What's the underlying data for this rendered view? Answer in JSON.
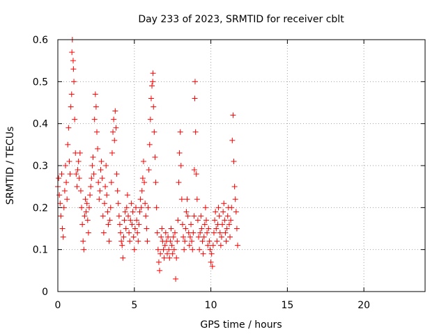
{
  "chart_data": {
    "type": "scatter",
    "title": "Day 233 of 2023, SRMTID for receiver cblt",
    "xlabel": "GPS time / hours",
    "ylabel": "SRMTID / TECUs",
    "xlim": [
      0,
      24
    ],
    "ylim": [
      0,
      0.6
    ],
    "xticks": [
      0,
      5,
      10,
      15,
      20
    ],
    "xtick_labels": [
      "0",
      "5",
      "10",
      "15",
      "20"
    ],
    "yticks": [
      0,
      0.1,
      0.2,
      0.3,
      0.4,
      0.5,
      0.6
    ],
    "ytick_labels": [
      "0",
      "0.1",
      "0.2",
      "0.3",
      "0.4",
      "0.5",
      "0.6"
    ],
    "grid": true,
    "marker": "+",
    "color": "#ff0000",
    "series": [
      {
        "name": "SRMTID",
        "points": [
          [
            0.0,
            0.25
          ],
          [
            0.05,
            0.27
          ],
          [
            0.1,
            0.23
          ],
          [
            0.15,
            0.21
          ],
          [
            0.2,
            0.18
          ],
          [
            0.25,
            0.28
          ],
          [
            0.3,
            0.15
          ],
          [
            0.35,
            0.13
          ],
          [
            0.4,
            0.2
          ],
          [
            0.45,
            0.24
          ],
          [
            0.5,
            0.3
          ],
          [
            0.55,
            0.26
          ],
          [
            0.6,
            0.22
          ],
          [
            0.65,
            0.35
          ],
          [
            0.7,
            0.39
          ],
          [
            0.75,
            0.31
          ],
          [
            0.8,
            0.28
          ],
          [
            0.85,
            0.44
          ],
          [
            0.9,
            0.47
          ],
          [
            0.92,
            0.57
          ],
          [
            0.95,
            0.6
          ],
          [
            1.0,
            0.55
          ],
          [
            1.02,
            0.53
          ],
          [
            1.05,
            0.5
          ],
          [
            1.1,
            0.41
          ],
          [
            1.15,
            0.33
          ],
          [
            1.2,
            0.28
          ],
          [
            1.25,
            0.25
          ],
          [
            1.3,
            0.29
          ],
          [
            1.35,
            0.31
          ],
          [
            1.4,
            0.27
          ],
          [
            1.45,
            0.33
          ],
          [
            1.5,
            0.24
          ],
          [
            1.55,
            0.2
          ],
          [
            1.6,
            0.16
          ],
          [
            1.65,
            0.12
          ],
          [
            1.7,
            0.1
          ],
          [
            1.75,
            0.18
          ],
          [
            1.8,
            0.22
          ],
          [
            1.85,
            0.19
          ],
          [
            1.9,
            0.21
          ],
          [
            1.95,
            0.17
          ],
          [
            2.0,
            0.14
          ],
          [
            2.05,
            0.2
          ],
          [
            2.1,
            0.23
          ],
          [
            2.15,
            0.25
          ],
          [
            2.2,
            0.27
          ],
          [
            2.25,
            0.3
          ],
          [
            2.3,
            0.32
          ],
          [
            2.35,
            0.28
          ],
          [
            2.4,
            0.41
          ],
          [
            2.45,
            0.47
          ],
          [
            2.5,
            0.44
          ],
          [
            2.55,
            0.38
          ],
          [
            2.6,
            0.34
          ],
          [
            2.65,
            0.26
          ],
          [
            2.7,
            0.22
          ],
          [
            2.75,
            0.24
          ],
          [
            2.8,
            0.29
          ],
          [
            2.85,
            0.31
          ],
          [
            2.9,
            0.27
          ],
          [
            2.95,
            0.18
          ],
          [
            3.0,
            0.14
          ],
          [
            3.05,
            0.21
          ],
          [
            3.1,
            0.25
          ],
          [
            3.15,
            0.3
          ],
          [
            3.2,
            0.23
          ],
          [
            3.25,
            0.19
          ],
          [
            3.3,
            0.16
          ],
          [
            3.35,
            0.12
          ],
          [
            3.4,
            0.17
          ],
          [
            3.45,
            0.2
          ],
          [
            3.5,
            0.26
          ],
          [
            3.55,
            0.33
          ],
          [
            3.6,
            0.38
          ],
          [
            3.65,
            0.41
          ],
          [
            3.7,
            0.36
          ],
          [
            3.75,
            0.43
          ],
          [
            3.8,
            0.39
          ],
          [
            3.85,
            0.28
          ],
          [
            3.9,
            0.24
          ],
          [
            3.95,
            0.21
          ],
          [
            4.0,
            0.18
          ],
          [
            4.05,
            0.16
          ],
          [
            4.1,
            0.14
          ],
          [
            4.15,
            0.12
          ],
          [
            4.2,
            0.11
          ],
          [
            4.25,
            0.08
          ],
          [
            4.3,
            0.13
          ],
          [
            4.35,
            0.17
          ],
          [
            4.4,
            0.19
          ],
          [
            4.45,
            0.15
          ],
          [
            4.5,
            0.2
          ],
          [
            4.55,
            0.23
          ],
          [
            4.6,
            0.18
          ],
          [
            4.65,
            0.14
          ],
          [
            4.7,
            0.12
          ],
          [
            4.75,
            0.17
          ],
          [
            4.8,
            0.21
          ],
          [
            4.85,
            0.16
          ],
          [
            4.9,
            0.19
          ],
          [
            4.95,
            0.13
          ],
          [
            5.0,
            0.1
          ],
          [
            5.05,
            0.15
          ],
          [
            5.1,
            0.2
          ],
          [
            5.15,
            0.17
          ],
          [
            5.2,
            0.14
          ],
          [
            5.25,
            0.12
          ],
          [
            5.3,
            0.16
          ],
          [
            5.35,
            0.19
          ],
          [
            5.4,
            0.22
          ],
          [
            5.45,
            0.2
          ],
          [
            5.5,
            0.24
          ],
          [
            5.55,
            0.27
          ],
          [
            5.6,
            0.31
          ],
          [
            5.65,
            0.26
          ],
          [
            5.7,
            0.21
          ],
          [
            5.75,
            0.18
          ],
          [
            5.8,
            0.15
          ],
          [
            5.85,
            0.12
          ],
          [
            5.9,
            0.2
          ],
          [
            5.95,
            0.29
          ],
          [
            6.0,
            0.35
          ],
          [
            6.05,
            0.41
          ],
          [
            6.1,
            0.46
          ],
          [
            6.15,
            0.49
          ],
          [
            6.2,
            0.5
          ],
          [
            6.22,
            0.52
          ],
          [
            6.25,
            0.44
          ],
          [
            6.3,
            0.38
          ],
          [
            6.35,
            0.32
          ],
          [
            6.4,
            0.26
          ],
          [
            6.45,
            0.2
          ],
          [
            6.5,
            0.14
          ],
          [
            6.55,
            0.1
          ],
          [
            6.6,
            0.07
          ],
          [
            6.65,
            0.05
          ],
          [
            6.7,
            0.09
          ],
          [
            6.75,
            0.13
          ],
          [
            6.8,
            0.15
          ],
          [
            6.85,
            0.12
          ],
          [
            6.9,
            0.1
          ],
          [
            6.95,
            0.08
          ],
          [
            7.0,
            0.11
          ],
          [
            7.05,
            0.14
          ],
          [
            7.1,
            0.12
          ],
          [
            7.15,
            0.09
          ],
          [
            7.2,
            0.13
          ],
          [
            7.25,
            0.1
          ],
          [
            7.3,
            0.08
          ],
          [
            7.35,
            0.12
          ],
          [
            7.4,
            0.15
          ],
          [
            7.45,
            0.11
          ],
          [
            7.5,
            0.09
          ],
          [
            7.55,
            0.13
          ],
          [
            7.6,
            0.1
          ],
          [
            7.65,
            0.14
          ],
          [
            7.7,
            0.03
          ],
          [
            7.75,
            0.08
          ],
          [
            7.8,
            0.12
          ],
          [
            7.85,
            0.17
          ],
          [
            7.9,
            0.26
          ],
          [
            7.95,
            0.33
          ],
          [
            8.0,
            0.38
          ],
          [
            8.05,
            0.3
          ],
          [
            8.1,
            0.22
          ],
          [
            8.15,
            0.16
          ],
          [
            8.2,
            0.13
          ],
          [
            8.25,
            0.1
          ],
          [
            8.3,
            0.12
          ],
          [
            8.35,
            0.15
          ],
          [
            8.4,
            0.19
          ],
          [
            8.45,
            0.22
          ],
          [
            8.5,
            0.18
          ],
          [
            8.55,
            0.14
          ],
          [
            8.6,
            0.11
          ],
          [
            8.65,
            0.13
          ],
          [
            8.7,
            0.16
          ],
          [
            8.75,
            0.12
          ],
          [
            8.8,
            0.1
          ],
          [
            8.85,
            0.14
          ],
          [
            8.9,
            0.18
          ],
          [
            8.92,
            0.29
          ],
          [
            8.95,
            0.46
          ],
          [
            8.97,
            0.5
          ],
          [
            9.0,
            0.38
          ],
          [
            9.05,
            0.28
          ],
          [
            9.1,
            0.22
          ],
          [
            9.15,
            0.17
          ],
          [
            9.2,
            0.13
          ],
          [
            9.25,
            0.1
          ],
          [
            9.3,
            0.14
          ],
          [
            9.35,
            0.18
          ],
          [
            9.4,
            0.15
          ],
          [
            9.45,
            0.12
          ],
          [
            9.5,
            0.09
          ],
          [
            9.55,
            0.13
          ],
          [
            9.6,
            0.16
          ],
          [
            9.65,
            0.2
          ],
          [
            9.7,
            0.17
          ],
          [
            9.75,
            0.14
          ],
          [
            9.8,
            0.11
          ],
          [
            9.85,
            0.15
          ],
          [
            9.9,
            0.12
          ],
          [
            9.95,
            0.1
          ],
          [
            10.0,
            0.07
          ],
          [
            10.05,
            0.09
          ],
          [
            10.1,
            0.06
          ],
          [
            10.15,
            0.11
          ],
          [
            10.2,
            0.14
          ],
          [
            10.25,
            0.17
          ],
          [
            10.3,
            0.19
          ],
          [
            10.35,
            0.15
          ],
          [
            10.4,
            0.12
          ],
          [
            10.45,
            0.16
          ],
          [
            10.5,
            0.2
          ],
          [
            10.55,
            0.18
          ],
          [
            10.6,
            0.14
          ],
          [
            10.65,
            0.11
          ],
          [
            10.7,
            0.13
          ],
          [
            10.75,
            0.16
          ],
          [
            10.8,
            0.19
          ],
          [
            10.85,
            0.21
          ],
          [
            10.9,
            0.17
          ],
          [
            10.95,
            0.14
          ],
          [
            11.0,
            0.12
          ],
          [
            11.05,
            0.15
          ],
          [
            11.1,
            0.18
          ],
          [
            11.15,
            0.2
          ],
          [
            11.2,
            0.16
          ],
          [
            11.25,
            0.13
          ],
          [
            11.3,
            0.17
          ],
          [
            11.35,
            0.2
          ],
          [
            11.4,
            0.36
          ],
          [
            11.45,
            0.42
          ],
          [
            11.5,
            0.31
          ],
          [
            11.55,
            0.25
          ],
          [
            11.6,
            0.22
          ],
          [
            11.65,
            0.19
          ],
          [
            11.7,
            0.15
          ],
          [
            11.75,
            0.11
          ]
        ]
      }
    ]
  }
}
